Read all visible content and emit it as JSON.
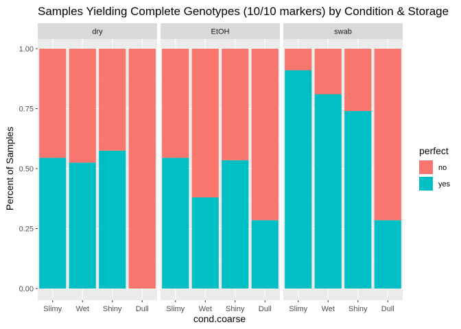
{
  "chart_data": {
    "type": "bar",
    "stacked": true,
    "title": "Samples Yielding Complete Genotypes (10/10 markers) by Condition & Storage",
    "xlabel": "cond.coarse",
    "ylabel": "Percent of Samples",
    "ylim": [
      0,
      1
    ],
    "yticks": [
      "0.00",
      "0.25",
      "0.50",
      "0.75",
      "1.00"
    ],
    "categories": [
      "Slimy",
      "Wet",
      "Shiny",
      "Dull"
    ],
    "legend": {
      "title": "perfect",
      "placement": "right",
      "entries": [
        {
          "label": "no",
          "color": "#F8766D"
        },
        {
          "label": "yes",
          "color": "#00BFC4"
        }
      ]
    },
    "panels": [
      {
        "facet": "dry",
        "series": [
          {
            "name": "yes",
            "values": [
              0.545,
              0.525,
              0.575,
              0.0
            ]
          },
          {
            "name": "no",
            "values": [
              0.455,
              0.475,
              0.425,
              1.0
            ]
          }
        ]
      },
      {
        "facet": "EtOH",
        "series": [
          {
            "name": "yes",
            "values": [
              0.545,
              0.38,
              0.535,
              0.285
            ]
          },
          {
            "name": "no",
            "values": [
              0.455,
              0.62,
              0.465,
              0.715
            ]
          }
        ]
      },
      {
        "facet": "swab",
        "series": [
          {
            "name": "yes",
            "values": [
              0.91,
              0.81,
              0.74,
              0.285
            ]
          },
          {
            "name": "no",
            "values": [
              0.09,
              0.19,
              0.26,
              0.715
            ]
          }
        ]
      }
    ],
    "colors": {
      "panel_bg": "#EBEBEB",
      "strip_bg": "#D9D9D9",
      "grid": "#FFFFFF"
    },
    "grid": true
  }
}
